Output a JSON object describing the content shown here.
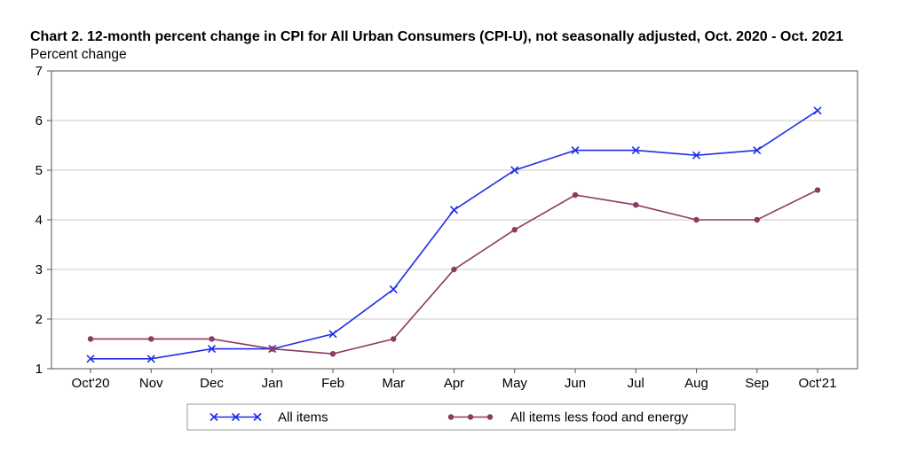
{
  "chart_data": {
    "type": "line",
    "title": "Chart 2. 12-month percent change in CPI for All Urban Consumers (CPI-U), not seasonally adjusted, Oct. 2020 - Oct. 2021",
    "ylabel": "Percent change",
    "xlabel": "",
    "categories": [
      "Oct'20",
      "Nov",
      "Dec",
      "Jan",
      "Feb",
      "Mar",
      "Apr",
      "May",
      "Jun",
      "Jul",
      "Aug",
      "Sep",
      "Oct'21"
    ],
    "ylim": [
      1,
      7
    ],
    "yticks": [
      1,
      2,
      3,
      4,
      5,
      6,
      7
    ],
    "grid": true,
    "legend_position": "bottom",
    "series": [
      {
        "name": "All items",
        "color": "#1f2de6",
        "marker": "x",
        "values": [
          1.2,
          1.2,
          1.4,
          1.4,
          1.7,
          2.6,
          4.2,
          5.0,
          5.4,
          5.4,
          5.3,
          5.4,
          6.2
        ]
      },
      {
        "name": "All items less food and energy",
        "color": "#8b3a62",
        "marker": "circle",
        "values": [
          1.6,
          1.6,
          1.6,
          1.4,
          1.3,
          1.6,
          3.0,
          3.8,
          4.5,
          4.3,
          4.0,
          4.0,
          4.6
        ]
      }
    ]
  }
}
